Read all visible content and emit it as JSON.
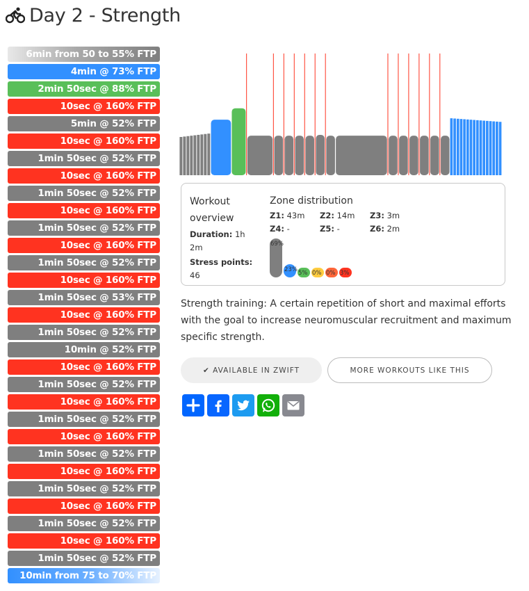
{
  "page": {
    "title": "Day 2 - Strength",
    "title_icon": "cyclist-icon"
  },
  "steps": [
    {
      "label": "6min from 50 to 55% FTP",
      "zone": "warmup"
    },
    {
      "label": "4min @ 73% FTP",
      "zone": "z2"
    },
    {
      "label": "2min 50sec @ 88% FTP",
      "zone": "z3"
    },
    {
      "label": "10sec @ 160% FTP",
      "zone": "z6"
    },
    {
      "label": "5min @ 52% FTP",
      "zone": "z1"
    },
    {
      "label": "10sec @ 160% FTP",
      "zone": "z6"
    },
    {
      "label": "1min 50sec @ 52% FTP",
      "zone": "z1"
    },
    {
      "label": "10sec @ 160% FTP",
      "zone": "z6"
    },
    {
      "label": "1min 50sec @ 52% FTP",
      "zone": "z1"
    },
    {
      "label": "10sec @ 160% FTP",
      "zone": "z6"
    },
    {
      "label": "1min 50sec @ 52% FTP",
      "zone": "z1"
    },
    {
      "label": "10sec @ 160% FTP",
      "zone": "z6"
    },
    {
      "label": "1min 50sec @ 52% FTP",
      "zone": "z1"
    },
    {
      "label": "10sec @ 160% FTP",
      "zone": "z6"
    },
    {
      "label": "1min 50sec @ 53% FTP",
      "zone": "z1"
    },
    {
      "label": "10sec @ 160% FTP",
      "zone": "z6"
    },
    {
      "label": "1min 50sec @ 52% FTP",
      "zone": "z1"
    },
    {
      "label": "10min @ 52% FTP",
      "zone": "z1"
    },
    {
      "label": "10sec @ 160% FTP",
      "zone": "z6"
    },
    {
      "label": "1min 50sec @ 52% FTP",
      "zone": "z1"
    },
    {
      "label": "10sec @ 160% FTP",
      "zone": "z6"
    },
    {
      "label": "1min 50sec @ 52% FTP",
      "zone": "z1"
    },
    {
      "label": "10sec @ 160% FTP",
      "zone": "z6"
    },
    {
      "label": "1min 50sec @ 52% FTP",
      "zone": "z1"
    },
    {
      "label": "10sec @ 160% FTP",
      "zone": "z6"
    },
    {
      "label": "1min 50sec @ 52% FTP",
      "zone": "z1"
    },
    {
      "label": "10sec @ 160% FTP",
      "zone": "z6"
    },
    {
      "label": "1min 50sec @ 52% FTP",
      "zone": "z1"
    },
    {
      "label": "10sec @ 160% FTP",
      "zone": "z6"
    },
    {
      "label": "1min 50sec @ 52% FTP",
      "zone": "z1"
    },
    {
      "label": "10min from 75 to 70% FTP",
      "zone": "cooldown"
    }
  ],
  "zone_colors": {
    "z1": "#7f7f7f",
    "z2": "#3290ff",
    "z3": "#59bf59",
    "z4": "#ffcc3f",
    "z5": "#ff6639",
    "z6": "#ff3320"
  },
  "overview": {
    "title": "Workout overview",
    "duration_label": "Duration:",
    "duration_value": "1h 2m",
    "stress_label": "Stress points:",
    "stress_value": "46"
  },
  "zone_distribution": {
    "title": "Zone distribution",
    "zones": [
      {
        "label": "Z1:",
        "value": "43m"
      },
      {
        "label": "Z2:",
        "value": "14m"
      },
      {
        "label": "Z3:",
        "value": "3m"
      },
      {
        "label": "Z4:",
        "value": "-"
      },
      {
        "label": "Z5:",
        "value": "-"
      },
      {
        "label": "Z6:",
        "value": "2m"
      }
    ],
    "percentages": [
      {
        "zone": "z1",
        "pct": 69,
        "label": "69%"
      },
      {
        "zone": "z2",
        "pct": 23,
        "label": "23%"
      },
      {
        "zone": "z3",
        "pct": 5,
        "label": "5%"
      },
      {
        "zone": "z4",
        "pct": 0,
        "label": "0%"
      },
      {
        "zone": "z5",
        "pct": 0,
        "label": "0%"
      },
      {
        "zone": "z6",
        "pct": 3,
        "label": "3%"
      }
    ]
  },
  "description": "Strength training: A certain repetition of short and maximal efforts with the goal to increase neuromuscular recruitment and maximum specific strength.",
  "buttons": {
    "zwift": "✔ AVAILABLE IN ZWIFT",
    "more": "MORE WORKOUTS LIKE THIS"
  },
  "share": [
    {
      "name": "share-icon",
      "color": "#0166ff"
    },
    {
      "name": "facebook-icon",
      "color": "#0866ff"
    },
    {
      "name": "twitter-icon",
      "color": "#1d9bf0"
    },
    {
      "name": "whatsapp-icon",
      "color": "#12af0a"
    },
    {
      "name": "email-icon",
      "color": "#888990"
    }
  ]
}
